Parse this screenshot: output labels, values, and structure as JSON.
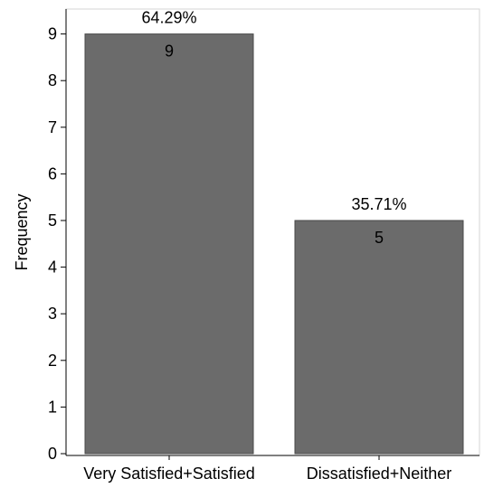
{
  "chart_data": {
    "type": "bar",
    "categories": [
      "Very Satisfied+Satisfied",
      "Dissatisfied+Neither"
    ],
    "values": [
      9,
      5
    ],
    "percent_labels": [
      "64.29%",
      "35.71%"
    ],
    "value_labels": [
      "9",
      "5"
    ],
    "title": "",
    "xlabel": "",
    "ylabel": "Frequency",
    "ylim": [
      0,
      9.6
    ],
    "yticks": [
      0,
      1,
      2,
      3,
      4,
      5,
      6,
      7,
      8,
      9
    ],
    "grid": false,
    "legend": "none",
    "colors": {
      "bar_fill": "#6b6b6b",
      "bar_stroke": "#4a4a4a",
      "frame": "#d4d4d4",
      "axis": "#000000"
    }
  }
}
